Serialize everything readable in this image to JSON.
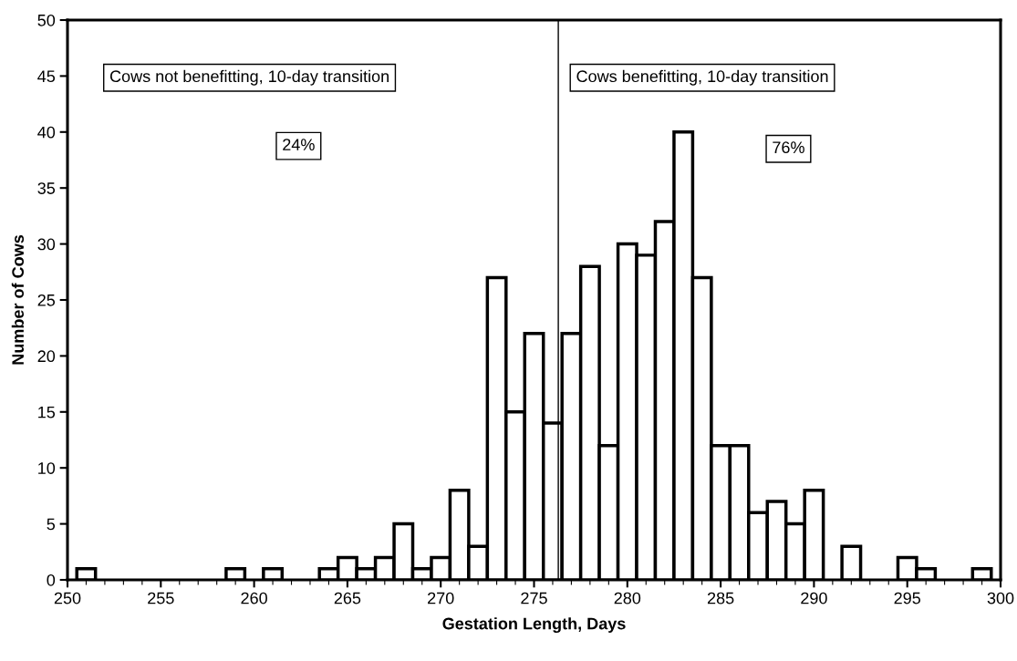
{
  "chart_data": {
    "type": "histogram",
    "xlabel": "Gestation Length, Days",
    "ylabel": "Number of Cows",
    "bins": [
      250.5,
      251.5,
      252.5,
      253.5,
      254.5,
      255.5,
      256.5,
      257.5,
      258.5,
      259.5,
      260.5,
      261.5,
      262.5,
      263.5,
      264.5,
      265.5,
      266.5,
      267.5,
      268.5,
      269.5,
      270.5,
      271.5,
      272.5,
      273.5,
      274.5,
      275.5,
      276.5,
      277.5,
      278.5,
      279.5,
      280.5,
      281.5,
      282.5,
      283.5,
      284.5,
      285.5,
      286.5,
      287.5,
      288.5,
      289.5,
      290.5,
      291.5,
      292.5,
      293.5,
      294.5,
      295.5,
      296.5,
      297.5,
      298.5,
      299.5
    ],
    "values": [
      1,
      0,
      0,
      0,
      0,
      0,
      0,
      0,
      1,
      0,
      1,
      0,
      0,
      1,
      2,
      1,
      2,
      5,
      1,
      2,
      8,
      3,
      27,
      15,
      22,
      14,
      22,
      28,
      12,
      30,
      29,
      32,
      40,
      27,
      12,
      12,
      6,
      7,
      5,
      8,
      0,
      3,
      0,
      0,
      2,
      1,
      0,
      0,
      1
    ],
    "color": "#ffffff",
    "xlim": [
      250,
      300
    ],
    "xticks": [
      250,
      255,
      260,
      265,
      270,
      275,
      280,
      285,
      290,
      295,
      300
    ],
    "ylim": [
      0,
      50
    ],
    "yticks": [
      0,
      5,
      10,
      15,
      20,
      25,
      30,
      35,
      40,
      45,
      50
    ],
    "ref_lines": [
      {
        "axis": "x",
        "value": 276.3,
        "color": "#000000"
      }
    ],
    "annotations": [
      "Cows not benefitting, 10-day transition",
      "24%",
      "Cows benefitting, 10-day transition",
      "76%"
    ],
    "grid": false,
    "legend": false
  }
}
